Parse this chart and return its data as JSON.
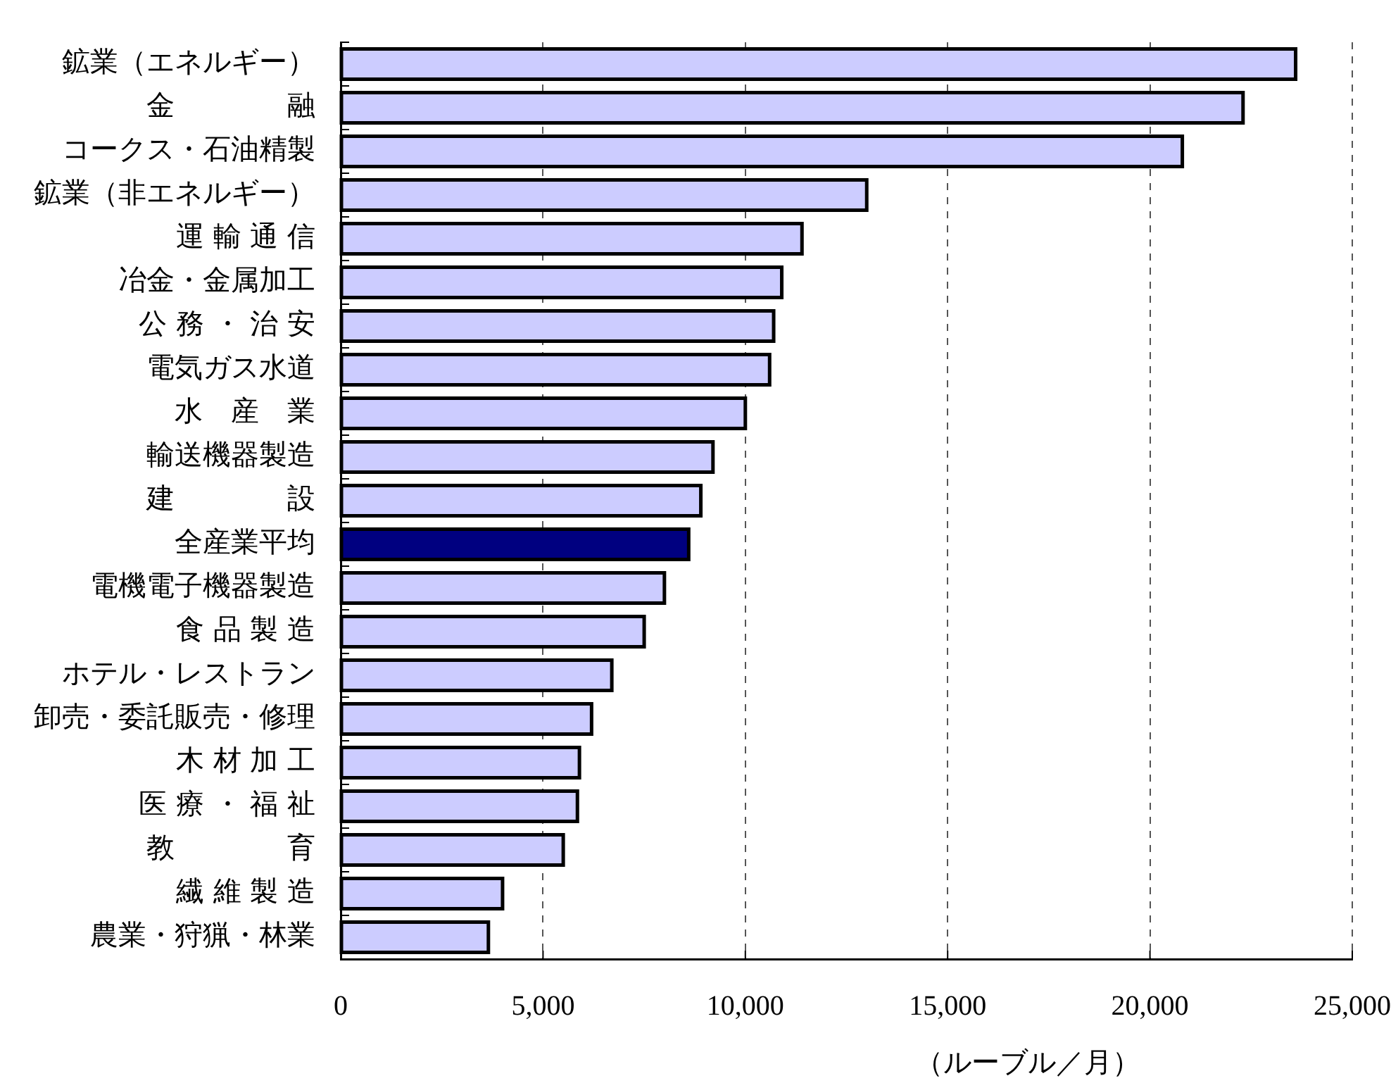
{
  "chart_data": {
    "type": "bar",
    "orientation": "horizontal",
    "categories": [
      "鉱業（エネルギー）",
      "金　　　　融",
      "コークス・石油精製",
      "鉱業（非エネルギー）",
      "運 輸 通 信",
      "冶金・金属加工",
      "公 務 ・ 治 安",
      "電気ガス水道",
      "水　産　業",
      "輸送機器製造",
      "建　　　　設",
      "全産業平均",
      "電機電子機器製造",
      "食 品 製 造",
      "ホテル・レストラン",
      "卸売・委託販売・修理",
      "木 材 加 工",
      "医 療 ・ 福 祉",
      "教　　　　育",
      "繊 維 製 造",
      "農業・狩猟・林業"
    ],
    "values": [
      23600,
      22300,
      20800,
      13000,
      11400,
      10900,
      10700,
      10600,
      10000,
      9200,
      8900,
      8600,
      8000,
      7500,
      6700,
      6200,
      5900,
      5850,
      5500,
      4000,
      3650
    ],
    "colors": [
      "#ccccff",
      "#ccccff",
      "#ccccff",
      "#ccccff",
      "#ccccff",
      "#ccccff",
      "#ccccff",
      "#ccccff",
      "#ccccff",
      "#ccccff",
      "#ccccff",
      "#000080",
      "#ccccff",
      "#ccccff",
      "#ccccff",
      "#ccccff",
      "#ccccff",
      "#ccccff",
      "#ccccff",
      "#ccccff",
      "#ccccff"
    ],
    "xlim": [
      0,
      25000
    ],
    "xticks": [
      0,
      {
        "value": 5000,
        "label": "5,000"
      },
      {
        "value": 10000,
        "label": "10,000"
      },
      {
        "value": 15000,
        "label": "15,000"
      },
      {
        "value": 20000,
        "label": "20,000"
      },
      {
        "value": 25000,
        "label": "25,000"
      }
    ],
    "xlabel": "（ルーブル／月）",
    "grid": "x"
  }
}
